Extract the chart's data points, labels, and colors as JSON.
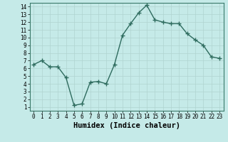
{
  "x": [
    0,
    1,
    2,
    3,
    4,
    5,
    6,
    7,
    8,
    9,
    10,
    11,
    12,
    13,
    14,
    15,
    16,
    17,
    18,
    19,
    20,
    21,
    22,
    23
  ],
  "y": [
    6.5,
    7.0,
    6.2,
    6.2,
    4.8,
    1.2,
    1.4,
    4.2,
    4.3,
    4.0,
    6.5,
    10.3,
    11.8,
    13.2,
    14.2,
    12.3,
    12.0,
    11.8,
    11.8,
    10.5,
    9.7,
    9.0,
    7.5,
    7.3
  ],
  "line_color": "#2e6b5e",
  "marker": "+",
  "markersize": 4,
  "linewidth": 1.0,
  "bg_color": "#c5eae8",
  "grid_color": "#b0d4d0",
  "xlabel": "Humidex (Indice chaleur)",
  "xlim": [
    -0.5,
    23.5
  ],
  "ylim": [
    0.5,
    14.5
  ],
  "yticks": [
    1,
    2,
    3,
    4,
    5,
    6,
    7,
    8,
    9,
    10,
    11,
    12,
    13,
    14
  ],
  "xticks": [
    0,
    1,
    2,
    3,
    4,
    5,
    6,
    7,
    8,
    9,
    10,
    11,
    12,
    13,
    14,
    15,
    16,
    17,
    18,
    19,
    20,
    21,
    22,
    23
  ],
  "tick_fontsize": 5.5,
  "xlabel_fontsize": 7.5,
  "axis_color": "#3a7a6a"
}
